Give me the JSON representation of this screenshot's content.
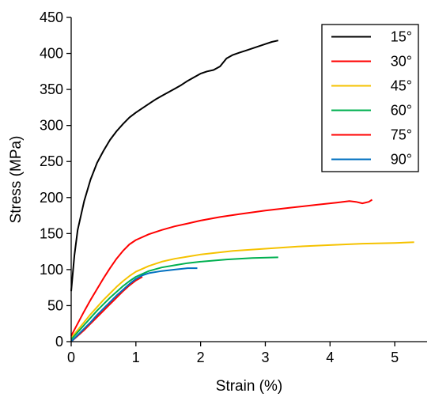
{
  "chart_data": {
    "type": "line",
    "xlabel": "Strain (%)",
    "ylabel": "Stress (MPa)",
    "xlim": [
      0,
      5.5
    ],
    "ylim": [
      0,
      450
    ],
    "xticks": [
      0,
      1,
      2,
      3,
      4,
      5
    ],
    "yticks": [
      0,
      50,
      100,
      150,
      200,
      250,
      300,
      350,
      400,
      450
    ],
    "grid": false,
    "legend_position": "top-right",
    "series": [
      {
        "name": "15°",
        "color": "#000000",
        "points": [
          [
            0.0,
            70
          ],
          [
            0.05,
            120
          ],
          [
            0.1,
            155
          ],
          [
            0.2,
            195
          ],
          [
            0.3,
            225
          ],
          [
            0.4,
            248
          ],
          [
            0.5,
            265
          ],
          [
            0.6,
            280
          ],
          [
            0.7,
            292
          ],
          [
            0.8,
            302
          ],
          [
            0.9,
            311
          ],
          [
            1.0,
            318
          ],
          [
            1.1,
            324
          ],
          [
            1.2,
            330
          ],
          [
            1.3,
            336
          ],
          [
            1.4,
            341
          ],
          [
            1.5,
            346
          ],
          [
            1.6,
            351
          ],
          [
            1.7,
            356
          ],
          [
            1.8,
            362
          ],
          [
            1.9,
            367
          ],
          [
            2.0,
            372
          ],
          [
            2.1,
            375
          ],
          [
            2.2,
            377
          ],
          [
            2.3,
            382
          ],
          [
            2.4,
            393
          ],
          [
            2.5,
            398
          ],
          [
            2.6,
            401
          ],
          [
            2.7,
            404
          ],
          [
            2.8,
            407
          ],
          [
            2.9,
            410
          ],
          [
            3.0,
            413
          ],
          [
            3.1,
            416
          ],
          [
            3.2,
            418
          ]
        ]
      },
      {
        "name": "30°",
        "color": "#ff0000",
        "points": [
          [
            0.0,
            8
          ],
          [
            0.1,
            25
          ],
          [
            0.2,
            42
          ],
          [
            0.3,
            58
          ],
          [
            0.4,
            73
          ],
          [
            0.5,
            88
          ],
          [
            0.6,
            102
          ],
          [
            0.7,
            115
          ],
          [
            0.8,
            126
          ],
          [
            0.9,
            135
          ],
          [
            1.0,
            141
          ],
          [
            1.2,
            149
          ],
          [
            1.4,
            155
          ],
          [
            1.6,
            160
          ],
          [
            1.8,
            164
          ],
          [
            2.0,
            168
          ],
          [
            2.3,
            173
          ],
          [
            2.6,
            177
          ],
          [
            3.0,
            182
          ],
          [
            3.4,
            186
          ],
          [
            3.8,
            190
          ],
          [
            4.1,
            193
          ],
          [
            4.3,
            195
          ],
          [
            4.4,
            194
          ],
          [
            4.5,
            192
          ],
          [
            4.6,
            194
          ],
          [
            4.65,
            197
          ]
        ]
      },
      {
        "name": "45°",
        "color": "#f5c200",
        "points": [
          [
            0.0,
            5
          ],
          [
            0.1,
            16
          ],
          [
            0.2,
            27
          ],
          [
            0.3,
            38
          ],
          [
            0.4,
            48
          ],
          [
            0.5,
            58
          ],
          [
            0.6,
            67
          ],
          [
            0.7,
            76
          ],
          [
            0.8,
            84
          ],
          [
            0.9,
            91
          ],
          [
            1.0,
            97
          ],
          [
            1.2,
            105
          ],
          [
            1.4,
            111
          ],
          [
            1.6,
            115
          ],
          [
            1.8,
            118
          ],
          [
            2.0,
            121
          ],
          [
            2.5,
            126
          ],
          [
            3.0,
            129
          ],
          [
            3.5,
            132
          ],
          [
            4.0,
            134
          ],
          [
            4.5,
            136
          ],
          [
            5.0,
            137
          ],
          [
            5.3,
            138
          ]
        ]
      },
      {
        "name": "60°",
        "color": "#00b050",
        "points": [
          [
            0.0,
            3
          ],
          [
            0.1,
            13
          ],
          [
            0.2,
            23
          ],
          [
            0.3,
            33
          ],
          [
            0.4,
            43
          ],
          [
            0.5,
            52
          ],
          [
            0.6,
            61
          ],
          [
            0.7,
            69
          ],
          [
            0.8,
            77
          ],
          [
            0.9,
            84
          ],
          [
            1.0,
            90
          ],
          [
            1.2,
            98
          ],
          [
            1.4,
            103
          ],
          [
            1.6,
            106
          ],
          [
            1.8,
            109
          ],
          [
            2.0,
            111
          ],
          [
            2.4,
            114
          ],
          [
            2.8,
            116
          ],
          [
            3.2,
            117
          ]
        ]
      },
      {
        "name": "75°",
        "color": "#ff0000",
        "points": [
          [
            0.0,
            0
          ],
          [
            0.1,
            8
          ],
          [
            0.2,
            16
          ],
          [
            0.3,
            25
          ],
          [
            0.4,
            34
          ],
          [
            0.5,
            43
          ],
          [
            0.6,
            52
          ],
          [
            0.7,
            61
          ],
          [
            0.8,
            70
          ],
          [
            0.9,
            78
          ],
          [
            1.0,
            85
          ],
          [
            1.1,
            90
          ]
        ]
      },
      {
        "name": "90°",
        "color": "#0070c0",
        "points": [
          [
            0.0,
            0
          ],
          [
            0.1,
            9
          ],
          [
            0.2,
            18
          ],
          [
            0.3,
            27
          ],
          [
            0.4,
            37
          ],
          [
            0.5,
            46
          ],
          [
            0.6,
            55
          ],
          [
            0.7,
            64
          ],
          [
            0.8,
            72
          ],
          [
            0.9,
            80
          ],
          [
            1.0,
            87
          ],
          [
            1.1,
            92
          ],
          [
            1.2,
            95
          ],
          [
            1.4,
            98
          ],
          [
            1.6,
            100
          ],
          [
            1.8,
            102
          ],
          [
            1.95,
            102
          ]
        ]
      }
    ]
  }
}
